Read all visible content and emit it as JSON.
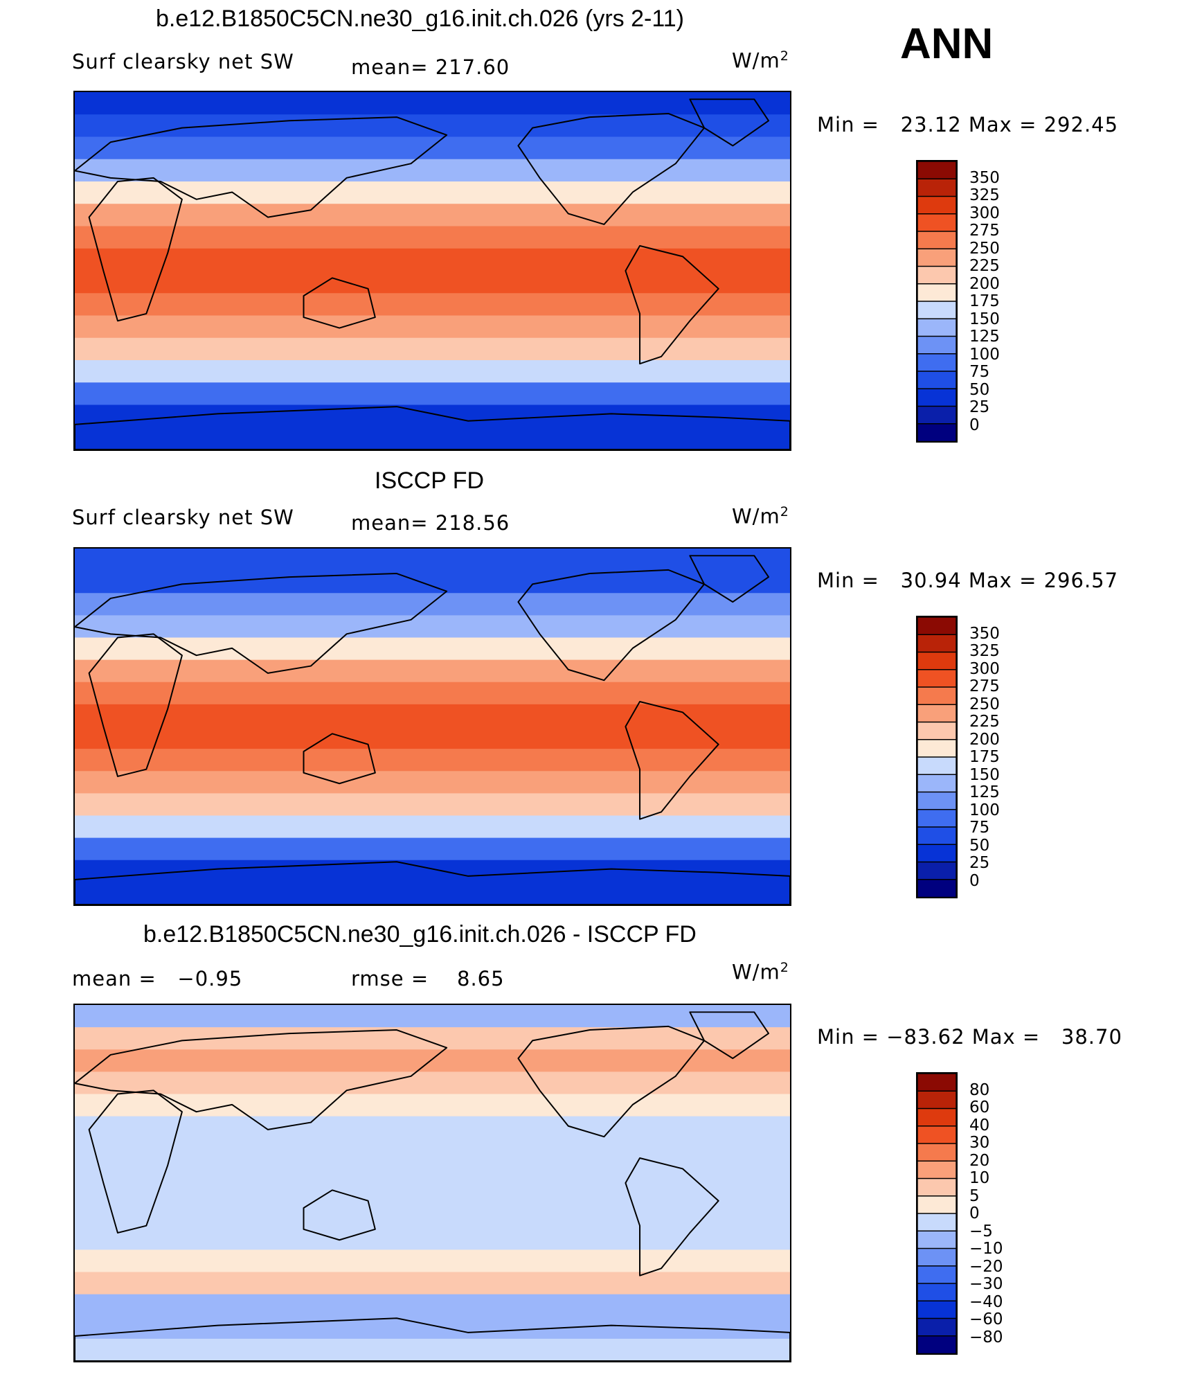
{
  "header": {
    "season": "ANN"
  },
  "colors": {
    "abs_scale": [
      "#00007f",
      "#0a1faa",
      "#0733d6",
      "#1f4fe6",
      "#3f6df0",
      "#6d92f5",
      "#9bb6fa",
      "#c8dafc",
      "#e6efff",
      "#fde9d6",
      "#fcc8ae",
      "#f9a07a",
      "#f57a4d",
      "#ef5223",
      "#de3a0e",
      "#b92308",
      "#8b0a03"
    ],
    "diff_scale": [
      "#00007f",
      "#0a1faa",
      "#0733d6",
      "#1f4fe6",
      "#3f6df0",
      "#6d92f5",
      "#9bb6fa",
      "#c8dafc",
      "#e6efff",
      "#fde9d6",
      "#fcc8ae",
      "#f9a07a",
      "#f57a4d",
      "#ef5223",
      "#de3a0e",
      "#b92308",
      "#8b0a03"
    ]
  },
  "chart_data": [
    {
      "type": "heatmap",
      "id": "model",
      "title": "b.e12.B1850C5CN.ne30_g16.init.ch.026 (yrs 2-11)",
      "variable": "Surf  clearsky  net  SW",
      "stat_label": "mean= ",
      "stat_value": "217.60",
      "units": "W/m",
      "units_exp": "2",
      "min_label": "Min  =",
      "min_value": "23.12",
      "max_label": "Max  =",
      "max_value": "292.45",
      "levels": [
        "350",
        "325",
        "300",
        "275",
        "250",
        "225",
        "200",
        "175",
        "150",
        "125",
        "100",
        "75",
        "50",
        "25",
        "0"
      ],
      "zonal_profile": [
        45,
        60,
        95,
        140,
        185,
        225,
        255,
        275,
        280,
        272,
        245,
        200,
        150,
        90,
        40,
        25
      ]
    },
    {
      "type": "heatmap",
      "id": "obs",
      "title": "ISCCP FD",
      "variable": "Surf  clearsky  net  SW",
      "stat_label": "mean= ",
      "stat_value": "218.56",
      "units": "W/m",
      "units_exp": "2",
      "min_label": "Min  =",
      "min_value": "30.94",
      "max_label": "Max  =",
      "max_value": "296.57",
      "levels": [
        "350",
        "325",
        "300",
        "275",
        "250",
        "225",
        "200",
        "175",
        "150",
        "125",
        "100",
        "75",
        "50",
        "25",
        "0"
      ],
      "zonal_profile": [
        50,
        65,
        100,
        145,
        190,
        228,
        258,
        278,
        283,
        274,
        248,
        205,
        155,
        95,
        45,
        32
      ]
    },
    {
      "type": "heatmap",
      "id": "diff",
      "title": "b.e12.B1850C5CN.ne30_g16.init.ch.026 - ISCCP FD",
      "mean_label": "mean  =",
      "mean_value": "−0.95",
      "rmse_label": "rmse  =",
      "rmse_value": "8.65",
      "units": "W/m",
      "units_exp": "2",
      "min_label": "Min  =",
      "min_value": "−83.62",
      "max_label": "Max  =",
      "max_value": "38.70",
      "levels": [
        "80",
        "60",
        "40",
        "30",
        "20",
        "10",
        "5",
        "0",
        "−5",
        "−10",
        "−20",
        "−30",
        "−40",
        "−60",
        "−80"
      ],
      "zonal_profile": [
        -8,
        6,
        12,
        9,
        4,
        -2,
        -3,
        -2,
        -2,
        -3,
        -2,
        2,
        6,
        -6,
        -10,
        -4
      ]
    }
  ]
}
